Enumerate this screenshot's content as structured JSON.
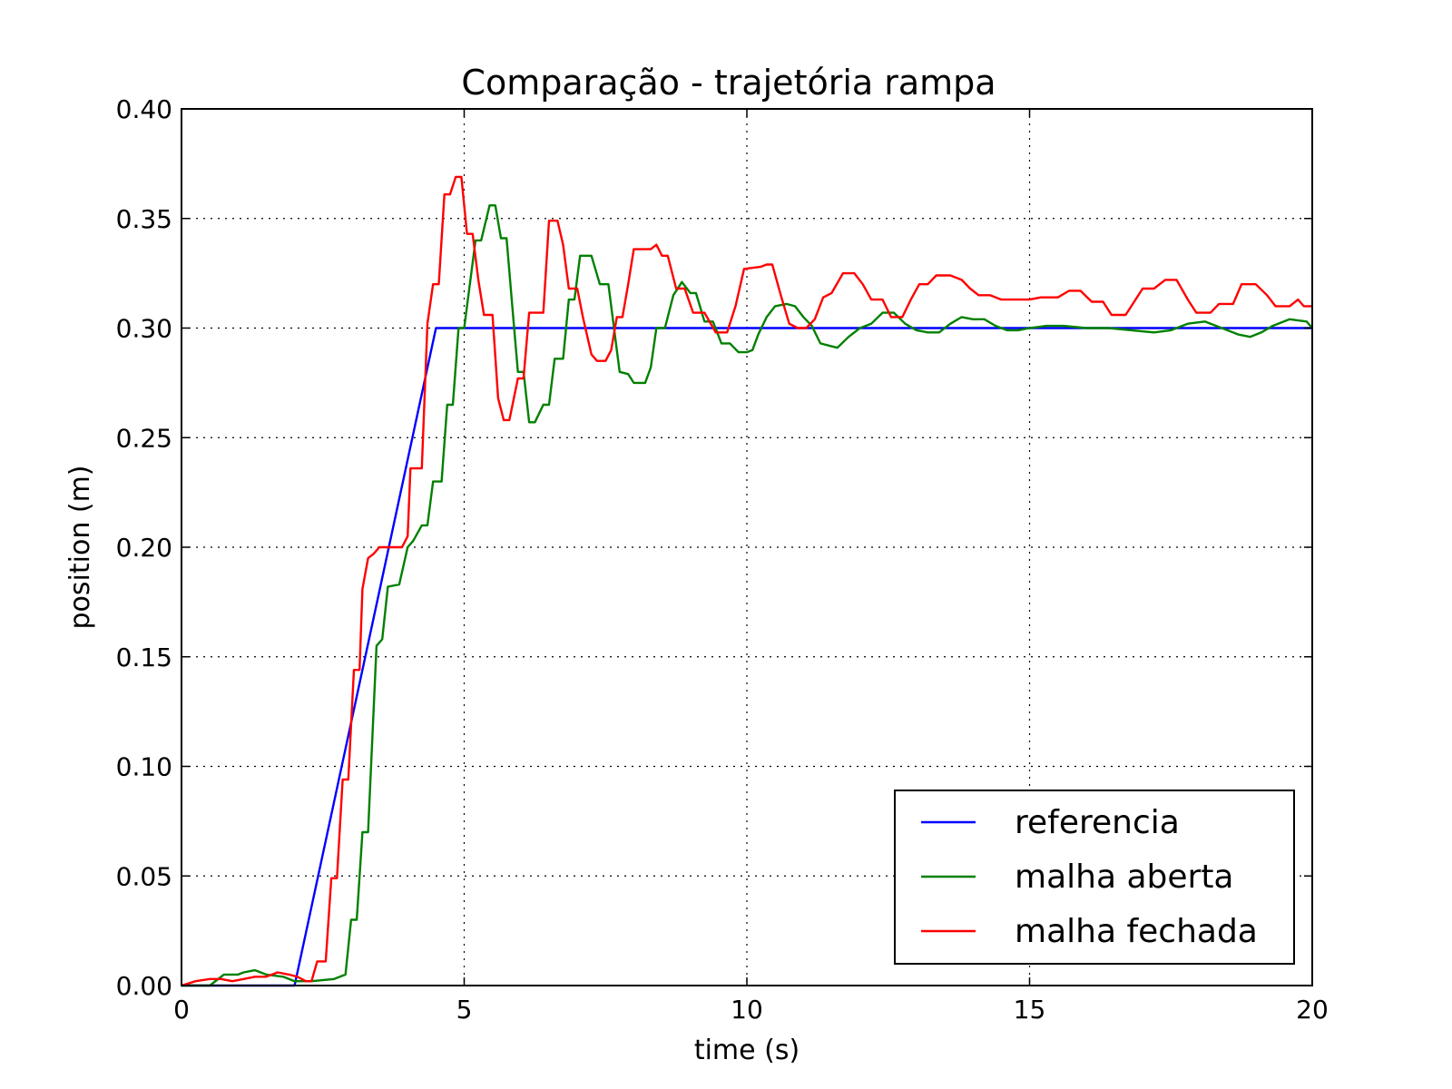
{
  "chart_data": {
    "type": "line",
    "title": "Comparação - trajetória rampa",
    "xlabel": "time (s)",
    "ylabel": "position (m)",
    "xlim": [
      0,
      20
    ],
    "ylim": [
      0,
      0.4
    ],
    "xticks": [
      0,
      5,
      10,
      15,
      20
    ],
    "yticks": [
      0.0,
      0.05,
      0.1,
      0.15,
      0.2,
      0.25,
      0.3,
      0.35,
      0.4
    ],
    "xtick_labels": [
      "0",
      "5",
      "10",
      "15",
      "20"
    ],
    "ytick_labels": [
      "0.00",
      "0.05",
      "0.10",
      "0.15",
      "0.20",
      "0.25",
      "0.30",
      "0.35",
      "0.40"
    ],
    "grid": true,
    "legend_position": "lower-right",
    "series": [
      {
        "name": "referencia",
        "color": "#0000ff",
        "points": [
          [
            0,
            0
          ],
          [
            2,
            0
          ],
          [
            4.5,
            0.3
          ],
          [
            20,
            0.3
          ]
        ]
      },
      {
        "name": "malha aberta",
        "color": "#008000",
        "points": [
          [
            0,
            0
          ],
          [
            0.5,
            0
          ],
          [
            0.75,
            0.005
          ],
          [
            1,
            0.005
          ],
          [
            1.1,
            0.006
          ],
          [
            1.3,
            0.007
          ],
          [
            1.5,
            0.005
          ],
          [
            1.8,
            0.004
          ],
          [
            2,
            0.002
          ],
          [
            2.3,
            0.002
          ],
          [
            2.7,
            0.003
          ],
          [
            2.9,
            0.005
          ],
          [
            3,
            0.03
          ],
          [
            3.1,
            0.03
          ],
          [
            3.2,
            0.07
          ],
          [
            3.3,
            0.07
          ],
          [
            3.45,
            0.155
          ],
          [
            3.55,
            0.158
          ],
          [
            3.65,
            0.182
          ],
          [
            3.85,
            0.183
          ],
          [
            4,
            0.2
          ],
          [
            4.1,
            0.203
          ],
          [
            4.25,
            0.21
          ],
          [
            4.35,
            0.21
          ],
          [
            4.45,
            0.23
          ],
          [
            4.6,
            0.23
          ],
          [
            4.7,
            0.265
          ],
          [
            4.8,
            0.265
          ],
          [
            4.9,
            0.3
          ],
          [
            5,
            0.3
          ],
          [
            5.2,
            0.34
          ],
          [
            5.3,
            0.34
          ],
          [
            5.45,
            0.356
          ],
          [
            5.55,
            0.356
          ],
          [
            5.65,
            0.341
          ],
          [
            5.75,
            0.341
          ],
          [
            5.85,
            0.31
          ],
          [
            5.95,
            0.28
          ],
          [
            6.05,
            0.28
          ],
          [
            6.15,
            0.257
          ],
          [
            6.25,
            0.257
          ],
          [
            6.4,
            0.265
          ],
          [
            6.5,
            0.265
          ],
          [
            6.6,
            0.286
          ],
          [
            6.75,
            0.286
          ],
          [
            6.85,
            0.313
          ],
          [
            6.95,
            0.313
          ],
          [
            7.05,
            0.333
          ],
          [
            7.25,
            0.333
          ],
          [
            7.4,
            0.32
          ],
          [
            7.55,
            0.32
          ],
          [
            7.75,
            0.28
          ],
          [
            7.9,
            0.279
          ],
          [
            8,
            0.275
          ],
          [
            8.2,
            0.275
          ],
          [
            8.3,
            0.282
          ],
          [
            8.4,
            0.3
          ],
          [
            8.55,
            0.3
          ],
          [
            8.7,
            0.315
          ],
          [
            8.85,
            0.321
          ],
          [
            9,
            0.316
          ],
          [
            9.1,
            0.316
          ],
          [
            9.25,
            0.303
          ],
          [
            9.4,
            0.303
          ],
          [
            9.55,
            0.293
          ],
          [
            9.7,
            0.293
          ],
          [
            9.85,
            0.289
          ],
          [
            10,
            0.289
          ],
          [
            10.1,
            0.29
          ],
          [
            10.2,
            0.297
          ],
          [
            10.35,
            0.305
          ],
          [
            10.5,
            0.31
          ],
          [
            10.7,
            0.311
          ],
          [
            10.85,
            0.31
          ],
          [
            11,
            0.305
          ],
          [
            11.15,
            0.301
          ],
          [
            11.3,
            0.293
          ],
          [
            11.45,
            0.292
          ],
          [
            11.6,
            0.291
          ],
          [
            11.8,
            0.296
          ],
          [
            12,
            0.3
          ],
          [
            12.2,
            0.302
          ],
          [
            12.4,
            0.307
          ],
          [
            12.6,
            0.307
          ],
          [
            12.8,
            0.302
          ],
          [
            13,
            0.299
          ],
          [
            13.2,
            0.298
          ],
          [
            13.4,
            0.298
          ],
          [
            13.6,
            0.302
          ],
          [
            13.8,
            0.305
          ],
          [
            14,
            0.304
          ],
          [
            14.2,
            0.304
          ],
          [
            14.4,
            0.301
          ],
          [
            14.6,
            0.299
          ],
          [
            14.8,
            0.299
          ],
          [
            15,
            0.3
          ],
          [
            15.3,
            0.301
          ],
          [
            15.6,
            0.301
          ],
          [
            16,
            0.3
          ],
          [
            16.4,
            0.3
          ],
          [
            16.8,
            0.299
          ],
          [
            17.2,
            0.298
          ],
          [
            17.5,
            0.299
          ],
          [
            17.8,
            0.302
          ],
          [
            18.1,
            0.303
          ],
          [
            18.4,
            0.3
          ],
          [
            18.7,
            0.297
          ],
          [
            18.9,
            0.296
          ],
          [
            19.1,
            0.298
          ],
          [
            19.3,
            0.301
          ],
          [
            19.6,
            0.304
          ],
          [
            19.9,
            0.303
          ],
          [
            20,
            0.3
          ]
        ]
      },
      {
        "name": "malha fechada",
        "color": "#ff0000",
        "points": [
          [
            0,
            0
          ],
          [
            0.25,
            0.002
          ],
          [
            0.5,
            0.003
          ],
          [
            0.7,
            0.003
          ],
          [
            0.9,
            0.002
          ],
          [
            1.1,
            0.003
          ],
          [
            1.3,
            0.004
          ],
          [
            1.5,
            0.004
          ],
          [
            1.7,
            0.006
          ],
          [
            1.9,
            0.005
          ],
          [
            2.05,
            0.004
          ],
          [
            2.2,
            0.002
          ],
          [
            2.3,
            0.002
          ],
          [
            2.4,
            0.011
          ],
          [
            2.55,
            0.011
          ],
          [
            2.65,
            0.049
          ],
          [
            2.75,
            0.049
          ],
          [
            2.85,
            0.094
          ],
          [
            2.95,
            0.094
          ],
          [
            3.05,
            0.144
          ],
          [
            3.15,
            0.144
          ],
          [
            3.2,
            0.181
          ],
          [
            3.3,
            0.195
          ],
          [
            3.4,
            0.197
          ],
          [
            3.5,
            0.2
          ],
          [
            3.9,
            0.2
          ],
          [
            4,
            0.205
          ],
          [
            4.05,
            0.236
          ],
          [
            4.25,
            0.236
          ],
          [
            4.35,
            0.302
          ],
          [
            4.45,
            0.32
          ],
          [
            4.55,
            0.32
          ],
          [
            4.65,
            0.361
          ],
          [
            4.75,
            0.361
          ],
          [
            4.85,
            0.369
          ],
          [
            4.95,
            0.369
          ],
          [
            5.05,
            0.343
          ],
          [
            5.15,
            0.343
          ],
          [
            5.25,
            0.322
          ],
          [
            5.35,
            0.306
          ],
          [
            5.5,
            0.306
          ],
          [
            5.6,
            0.268
          ],
          [
            5.7,
            0.258
          ],
          [
            5.8,
            0.258
          ],
          [
            5.95,
            0.277
          ],
          [
            6.05,
            0.277
          ],
          [
            6.15,
            0.307
          ],
          [
            6.4,
            0.307
          ],
          [
            6.5,
            0.349
          ],
          [
            6.65,
            0.349
          ],
          [
            6.75,
            0.338
          ],
          [
            6.85,
            0.318
          ],
          [
            7,
            0.318
          ],
          [
            7.1,
            0.305
          ],
          [
            7.25,
            0.288
          ],
          [
            7.35,
            0.285
          ],
          [
            7.5,
            0.285
          ],
          [
            7.6,
            0.29
          ],
          [
            7.7,
            0.305
          ],
          [
            7.8,
            0.305
          ],
          [
            7.9,
            0.32
          ],
          [
            8,
            0.336
          ],
          [
            8.3,
            0.336
          ],
          [
            8.4,
            0.338
          ],
          [
            8.5,
            0.333
          ],
          [
            8.6,
            0.333
          ],
          [
            8.75,
            0.318
          ],
          [
            8.9,
            0.318
          ],
          [
            9.05,
            0.307
          ],
          [
            9.25,
            0.307
          ],
          [
            9.45,
            0.298
          ],
          [
            9.65,
            0.298
          ],
          [
            9.8,
            0.31
          ],
          [
            9.95,
            0.327
          ],
          [
            10.25,
            0.328
          ],
          [
            10.35,
            0.329
          ],
          [
            10.45,
            0.329
          ],
          [
            10.6,
            0.315
          ],
          [
            10.75,
            0.302
          ],
          [
            10.9,
            0.3
          ],
          [
            11.05,
            0.3
          ],
          [
            11.2,
            0.304
          ],
          [
            11.35,
            0.314
          ],
          [
            11.5,
            0.316
          ],
          [
            11.7,
            0.325
          ],
          [
            11.9,
            0.325
          ],
          [
            12.05,
            0.32
          ],
          [
            12.2,
            0.313
          ],
          [
            12.4,
            0.313
          ],
          [
            12.55,
            0.305
          ],
          [
            12.75,
            0.305
          ],
          [
            12.9,
            0.313
          ],
          [
            13.05,
            0.32
          ],
          [
            13.2,
            0.32
          ],
          [
            13.35,
            0.324
          ],
          [
            13.6,
            0.324
          ],
          [
            13.8,
            0.322
          ],
          [
            13.95,
            0.318
          ],
          [
            14.1,
            0.315
          ],
          [
            14.3,
            0.315
          ],
          [
            14.5,
            0.313
          ],
          [
            15,
            0.313
          ],
          [
            15.2,
            0.314
          ],
          [
            15.5,
            0.314
          ],
          [
            15.7,
            0.317
          ],
          [
            15.9,
            0.317
          ],
          [
            16.1,
            0.312
          ],
          [
            16.3,
            0.312
          ],
          [
            16.45,
            0.306
          ],
          [
            16.7,
            0.306
          ],
          [
            16.85,
            0.312
          ],
          [
            17,
            0.318
          ],
          [
            17.2,
            0.318
          ],
          [
            17.4,
            0.322
          ],
          [
            17.6,
            0.322
          ],
          [
            17.8,
            0.313
          ],
          [
            17.95,
            0.307
          ],
          [
            18.2,
            0.307
          ],
          [
            18.35,
            0.311
          ],
          [
            18.6,
            0.311
          ],
          [
            18.75,
            0.32
          ],
          [
            19,
            0.32
          ],
          [
            19.2,
            0.315
          ],
          [
            19.35,
            0.31
          ],
          [
            19.6,
            0.31
          ],
          [
            19.75,
            0.313
          ],
          [
            19.85,
            0.31
          ],
          [
            20,
            0.31
          ]
        ]
      }
    ]
  }
}
